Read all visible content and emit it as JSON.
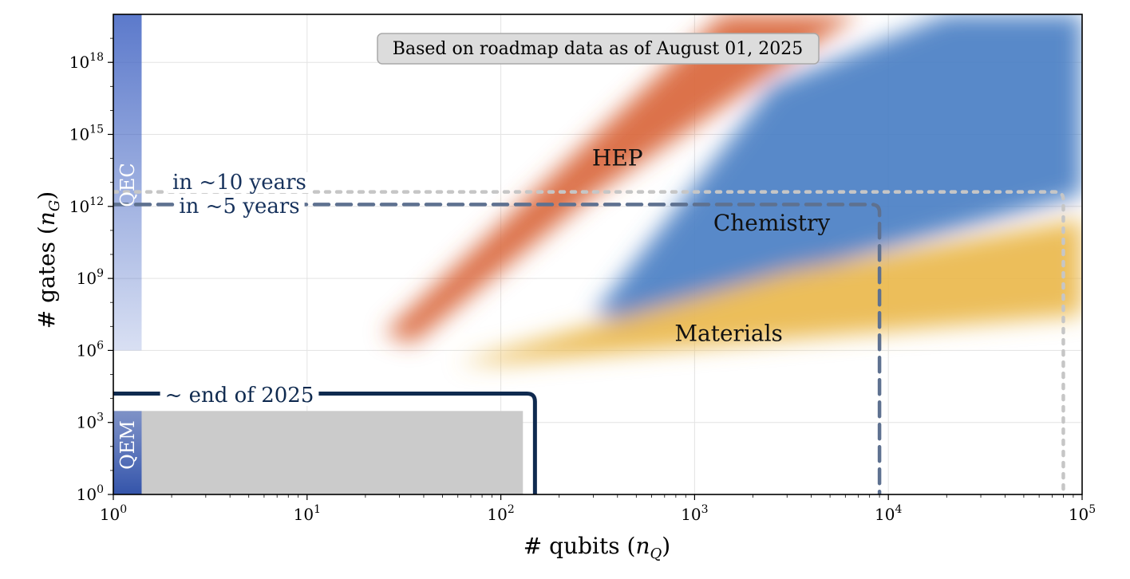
{
  "chart_data": {
    "type": "area",
    "xlabel": "# qubits (n_Q)",
    "ylabel": "# gates (n_G)",
    "xscale": "log",
    "yscale": "log",
    "xlim": [
      1,
      100000
    ],
    "ylim": [
      1,
      1e+20
    ],
    "x_ticks": [
      {
        "value": 1,
        "base": "10",
        "exp": "0"
      },
      {
        "value": 10,
        "base": "10",
        "exp": "1"
      },
      {
        "value": 100,
        "base": "10",
        "exp": "2"
      },
      {
        "value": 1000,
        "base": "10",
        "exp": "3"
      },
      {
        "value": 10000,
        "base": "10",
        "exp": "4"
      },
      {
        "value": 100000,
        "base": "10",
        "exp": "5"
      }
    ],
    "y_ticks": [
      {
        "value": 1,
        "base": "10",
        "exp": "0"
      },
      {
        "value": 1000,
        "base": "10",
        "exp": "3"
      },
      {
        "value": 1000000,
        "base": "10",
        "exp": "6"
      },
      {
        "value": 1000000000.0,
        "base": "10",
        "exp": "9"
      },
      {
        "value": 1000000000000.0,
        "base": "10",
        "exp": "12"
      },
      {
        "value": 1000000000000000.0,
        "base": "10",
        "exp": "15"
      },
      {
        "value": 1e+18,
        "base": "10",
        "exp": "18"
      }
    ],
    "grid": true,
    "annotation_box": "Based on roadmap data as of August 01, 2025",
    "regions": [
      {
        "label": "HEP",
        "color": "#d9663a",
        "polygon": [
          [
            25,
            5000000.0
          ],
          [
            35,
            2000000.0
          ],
          [
            300,
            3000000000000.0
          ],
          [
            7000,
            1e+20
          ],
          [
            1400,
            1e+20
          ]
        ],
        "label_at": [
          400,
          50000000000000.0
        ]
      },
      {
        "label": "Chemistry",
        "color": "#4a7fc4",
        "polygon": [
          [
            300,
            30000000.0
          ],
          [
            450,
            20000000.0
          ],
          [
            100000,
            3000000000000.0
          ],
          [
            100000,
            1e+20
          ],
          [
            20000,
            1e+20
          ],
          [
            2500,
            1e+17
          ]
        ],
        "label_at": [
          2500,
          100000000000.0
        ]
      },
      {
        "label": "Materials",
        "color": "#eab84d",
        "polygon": [
          [
            60,
            300000.0
          ],
          [
            100,
            300000.0
          ],
          [
            100000,
            30000000.0
          ],
          [
            100000,
            300000000000.0
          ],
          [
            3000,
            2000000000.0
          ]
        ],
        "label_at": [
          1500,
          2500000.0
        ]
      }
    ],
    "bands": [
      {
        "label": "QEC",
        "color": "#3f62c2",
        "x": [
          1,
          1.4
        ],
        "y": [
          1000000.0,
          1e+20
        ]
      },
      {
        "label": "QEM",
        "color": "#3f62c2",
        "x": [
          1,
          1.4
        ],
        "y": [
          1,
          3000.0
        ]
      }
    ],
    "gray_region": {
      "x": [
        1,
        130
      ],
      "y": [
        1,
        3000.0
      ],
      "color": "#cbcbcb"
    },
    "horizon_lines": [
      {
        "label": "~ end of 2025",
        "qubits": 150,
        "gates": 16000.0,
        "style": "solid",
        "color": "#0f2a4f"
      },
      {
        "label": "in ~5 years",
        "qubits": 9000,
        "gates": 1200000000000.0,
        "style": "dashed",
        "color": "#5e7190"
      },
      {
        "label": "in ~10 years",
        "qubits": 80000,
        "gates": 4000000000000.0,
        "style": "dotted",
        "color": "#c6c6c6"
      }
    ]
  }
}
